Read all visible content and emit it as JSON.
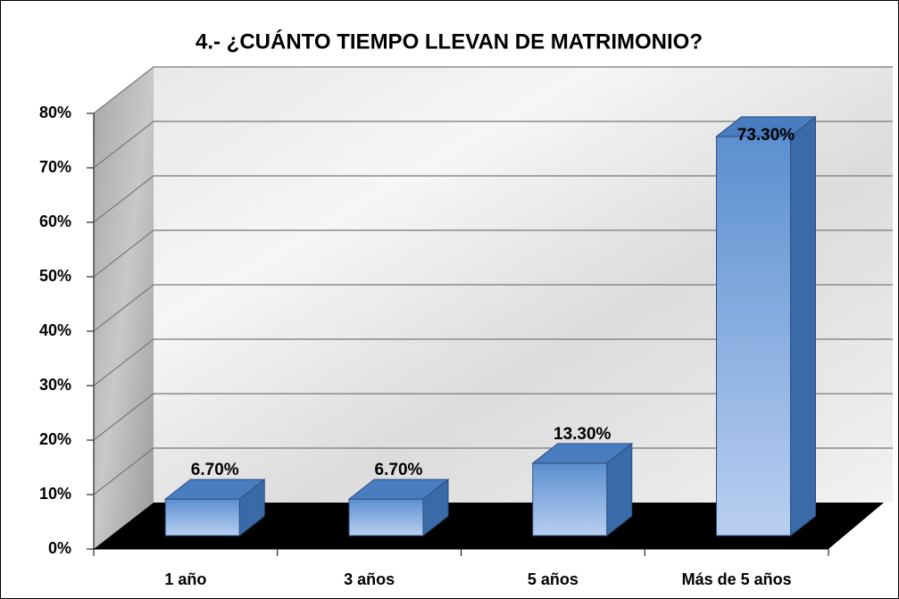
{
  "chart_data": {
    "type": "bar3d",
    "title": "4.- ¿CUÁNTO TIEMPO LLEVAN DE MATRIMONIO?",
    "categories": [
      "1 año",
      "3 años",
      "5 años",
      "Más de 5 años"
    ],
    "values": [
      6.7,
      6.7,
      13.3,
      73.3
    ],
    "value_labels": [
      "6.70%",
      "6.70%",
      "13.30%",
      "73.30%"
    ],
    "color": "#5b8fd0",
    "ylim": [
      0,
      80
    ],
    "yticks": [
      {
        "value": 0,
        "label": "0%"
      },
      {
        "value": 10,
        "label": "10%"
      },
      {
        "value": 20,
        "label": "20%"
      },
      {
        "value": 30,
        "label": "30%"
      },
      {
        "value": 40,
        "label": "40%"
      },
      {
        "value": 50,
        "label": "50%"
      },
      {
        "value": 60,
        "label": "60%"
      },
      {
        "value": 70,
        "label": "70%"
      },
      {
        "value": 80,
        "label": "80%"
      }
    ],
    "grid": true
  }
}
